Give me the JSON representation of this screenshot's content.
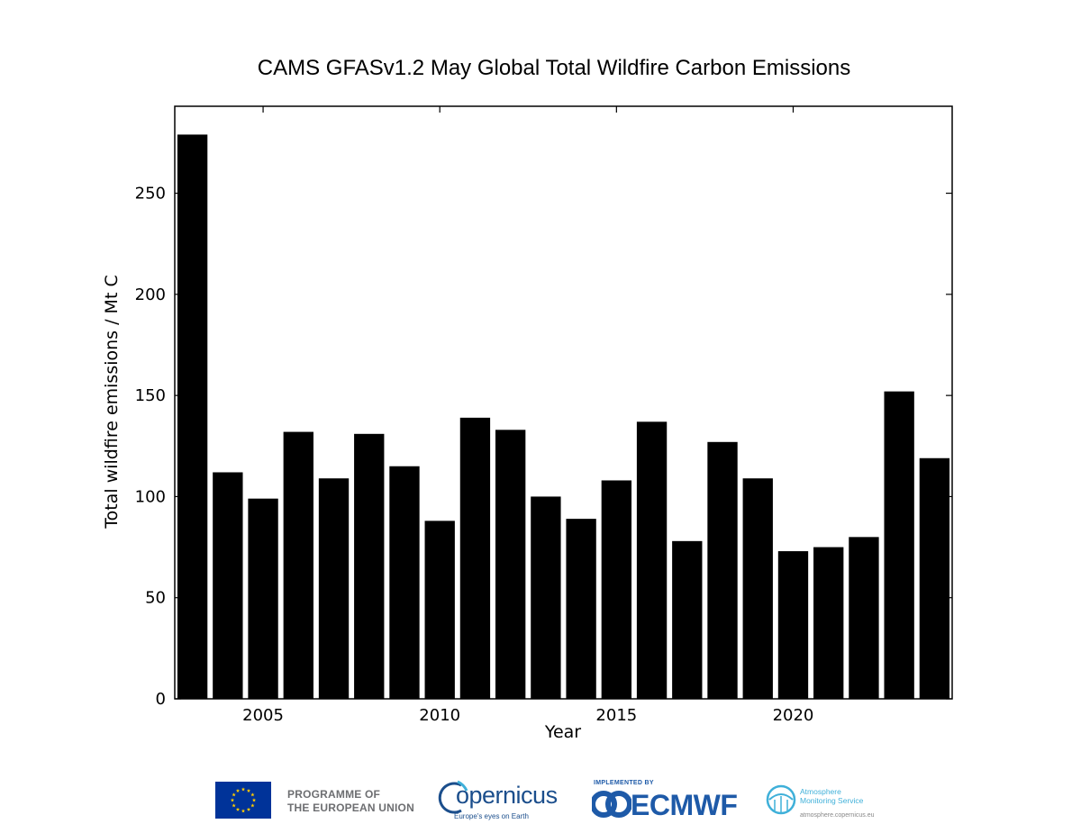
{
  "chart_data": {
    "type": "bar",
    "title": "CAMS GFASv1.2 May Global Total Wildfire Carbon Emissions",
    "xlabel": "Year",
    "ylabel": "Total wildfire emissions / Mt C",
    "x": [
      2003,
      2004,
      2005,
      2006,
      2007,
      2008,
      2009,
      2010,
      2011,
      2012,
      2013,
      2014,
      2015,
      2016,
      2017,
      2018,
      2019,
      2020,
      2021,
      2022,
      2023,
      2024
    ],
    "values": [
      279,
      112,
      99,
      132,
      109,
      131,
      115,
      88,
      139,
      133,
      100,
      89,
      108,
      137,
      78,
      127,
      109,
      73,
      75,
      80,
      152,
      119
    ],
    "xlim": [
      2002.5,
      2024.5
    ],
    "ylim": [
      0,
      293
    ],
    "xticks": [
      2005,
      2010,
      2015,
      2020
    ],
    "yticks": [
      0,
      50,
      100,
      150,
      200,
      250
    ],
    "bar_color": "#000000",
    "grid": false
  },
  "logos": {
    "eu_text_line1": "PROGRAMME OF",
    "eu_text_line2": "THE EUROPEAN UNION",
    "copernicus_word": "opernicus",
    "copernicus_tagline": "Europe's eyes on Earth",
    "ecmwf_implemented": "IMPLEMENTED BY",
    "ecmwf_word": "ECMWF",
    "ams_line1": "Atmosphere",
    "ams_line2": "Monitoring Service",
    "ams_url": "atmosphere.copernicus.eu",
    "eu_blue": "#003399",
    "eu_gold": "#ffcc00",
    "copernicus_blue": "#1b4e8c",
    "ecmwf_blue": "#1e5aa8",
    "ams_cyan": "#3fb0d9"
  }
}
